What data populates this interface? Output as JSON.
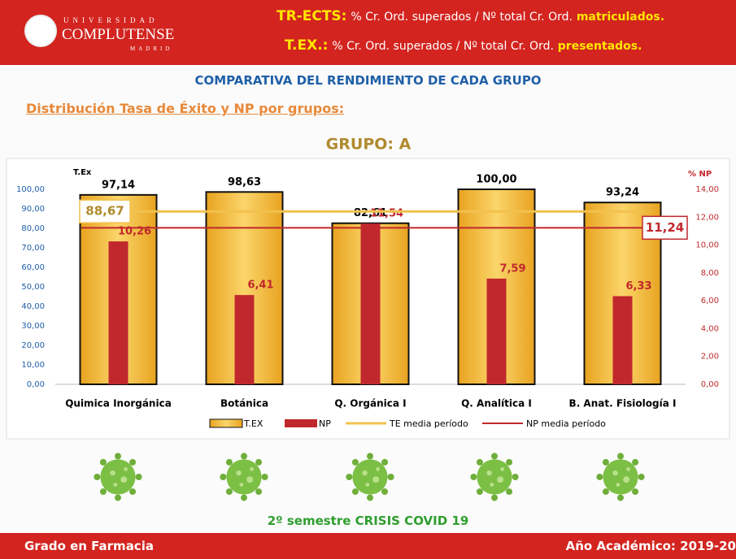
{
  "logo": {
    "top": "UNIVERSIDAD",
    "name": "COMPLUTENSE",
    "bottom": "MADRID"
  },
  "definitions": [
    {
      "term": "TR-ECTS:",
      "text": "% Cr. Ord. superados / Nº total Cr. Ord.",
      "highlight": "matriculados."
    },
    {
      "term": "T.EX.:",
      "text": "% Cr. Ord. superados / Nº total Cr. Ord.",
      "highlight": "presentados."
    }
  ],
  "heading": "COMPARATIVA DEL RENDIMIENTO DE CADA GRUPO",
  "subheading": "Distribución Tasa de Éxito y NP por grupos:",
  "chart_data": {
    "type": "bar",
    "title": "GRUPO: A",
    "y_label": "T.Ex",
    "y2_label": "% NP",
    "categories": [
      "Quimica Inorgánica",
      "Botánica",
      "Q. Orgánica I",
      "Q. Analítica I",
      "B. Anat. Fisiología I"
    ],
    "series": [
      {
        "name": "T.EX",
        "color": "#f2b531",
        "values": [
          97.14,
          98.63,
          82.61,
          100,
          93.24
        ],
        "value_labels": [
          "97,14",
          "98,63",
          "82,61",
          "100,00",
          "93,24"
        ]
      },
      {
        "name": "NP",
        "color": "#c0282d",
        "axis": "y2",
        "values": [
          10.26,
          6.41,
          11.54,
          7.59,
          6.33
        ],
        "value_labels": [
          "10,26",
          "6,41",
          "11,54",
          "7,59",
          "6,33"
        ]
      }
    ],
    "reference_lines": [
      {
        "name": "TE media período",
        "color": "#f2c14e",
        "value": 88.67,
        "label": "88,67"
      },
      {
        "name": "NP media período",
        "color": "#c0282d",
        "axis": "y2",
        "value": 11.24,
        "label": "11,24"
      }
    ],
    "ylim": [
      0,
      100
    ],
    "yticks": [
      {
        "value": 0,
        "label": "0,00"
      },
      {
        "value": 10,
        "label": "10,00"
      },
      {
        "value": 20,
        "label": "20,00"
      },
      {
        "value": 30,
        "label": "30,00"
      },
      {
        "value": 40,
        "label": "40,00"
      },
      {
        "value": 50,
        "label": "50,00"
      },
      {
        "value": 60,
        "label": "60,00"
      },
      {
        "value": 70,
        "label": "70,00"
      },
      {
        "value": 80,
        "label": "80,00"
      },
      {
        "value": 90,
        "label": "90,00"
      },
      {
        "value": 100,
        "label": "100,00"
      }
    ],
    "y2lim": [
      0,
      14
    ],
    "y2ticks": [
      {
        "value": 0,
        "label": "0,00"
      },
      {
        "value": 2,
        "label": "2,00"
      },
      {
        "value": 4,
        "label": "4,00"
      },
      {
        "value": 6,
        "label": "6,00"
      },
      {
        "value": 8,
        "label": "8,00"
      },
      {
        "value": 10,
        "label": "10,00"
      },
      {
        "value": 12,
        "label": "12,00"
      },
      {
        "value": 14,
        "label": "14,00"
      }
    ]
  },
  "caption": "2º semestre CRISIS COVID 19",
  "footer": {
    "left": "Grado en Farmacia",
    "right": "Año Académico: 2019-20"
  }
}
